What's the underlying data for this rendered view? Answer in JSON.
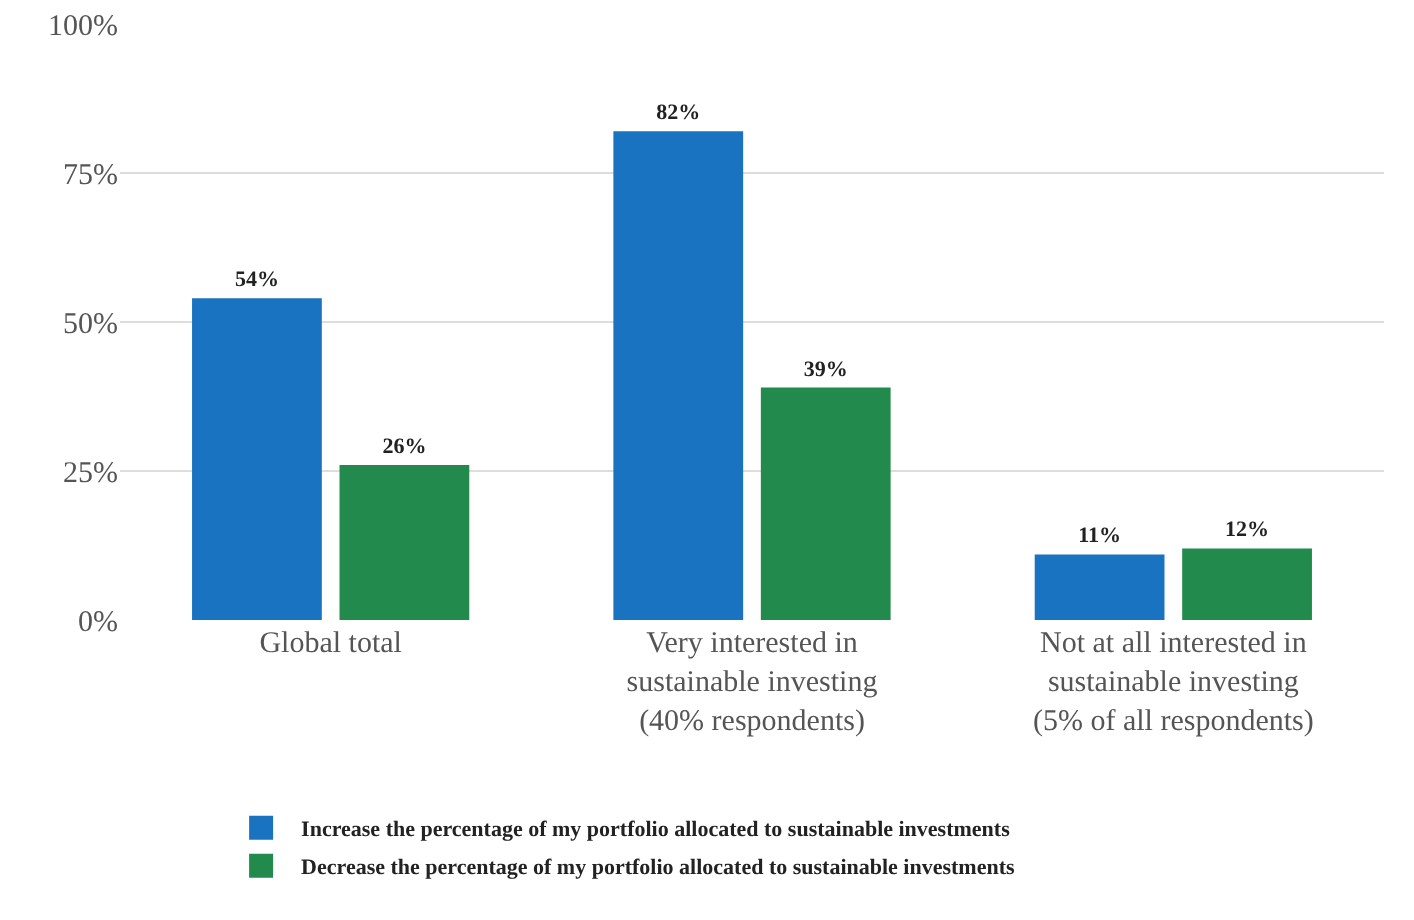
{
  "chart_data": {
    "type": "bar",
    "categories": [
      "Global total",
      "Very interested in sustainable investing (40% respondents)",
      "Not at all interested in sustainable investing (5% of all respondents)"
    ],
    "series": [
      {
        "name": "Increase the percentage of my portfolio allocated to sustainable investments",
        "color": "#1a73c1",
        "values": [
          54,
          82,
          11
        ],
        "value_labels": [
          "54%",
          "82%",
          "11%"
        ]
      },
      {
        "name": "Decrease the percentage of my portfolio allocated to sustainable investments",
        "color": "#218a4c",
        "values": [
          26,
          39,
          12
        ],
        "value_labels": [
          "26%",
          "39%",
          "12%"
        ]
      }
    ],
    "ylim": [
      0,
      100
    ],
    "yticks": [
      {
        "value": 0,
        "label": "0%"
      },
      {
        "value": 25,
        "label": "25%"
      },
      {
        "value": 50,
        "label": "50%"
      },
      {
        "value": 75,
        "label": "75%"
      },
      {
        "value": 100,
        "label": "100%"
      }
    ],
    "grid": "y",
    "legend": "bottom"
  }
}
